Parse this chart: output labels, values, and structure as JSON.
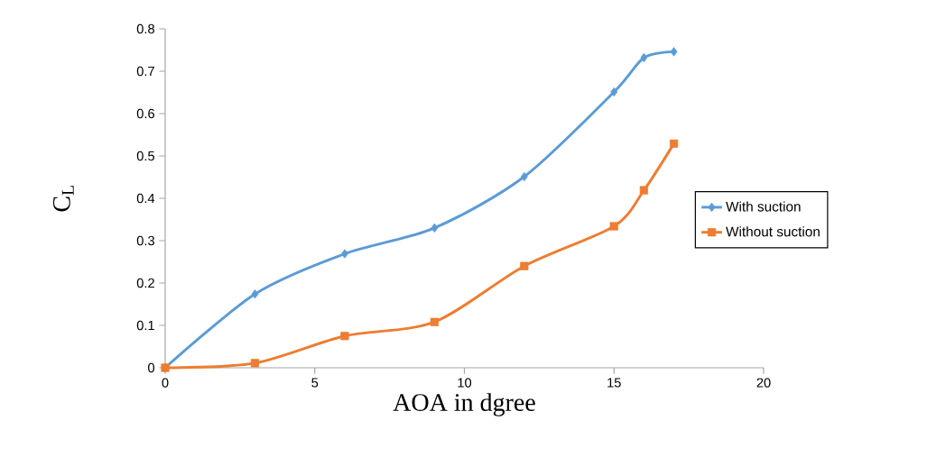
{
  "chart_data": {
    "type": "line",
    "xlabel": "AOA in dgree",
    "ylabel": "C$_{L}$",
    "x": [
      0,
      3,
      6,
      9,
      12,
      15,
      16,
      17
    ],
    "series": [
      {
        "name": "With suction",
        "color": "#5b9bd5",
        "marker": "diamond",
        "values": [
          0,
          0.174,
          0.269,
          0.33,
          0.451,
          0.651,
          0.732,
          0.746
        ]
      },
      {
        "name": "Without suction",
        "color": "#ed7d31",
        "marker": "square",
        "values": [
          0,
          0.011,
          0.075,
          0.108,
          0.24,
          0.334,
          0.419,
          0.529
        ]
      }
    ],
    "xlim": [
      0,
      20
    ],
    "xticks": [
      0,
      5,
      10,
      15,
      20
    ],
    "ylim": [
      0,
      0.8
    ],
    "yticks": [
      0,
      0.1,
      0.2,
      0.3,
      0.4,
      0.5,
      0.6,
      0.7,
      0.8
    ],
    "grid": false,
    "legend": "right",
    "line_style": "solid"
  }
}
